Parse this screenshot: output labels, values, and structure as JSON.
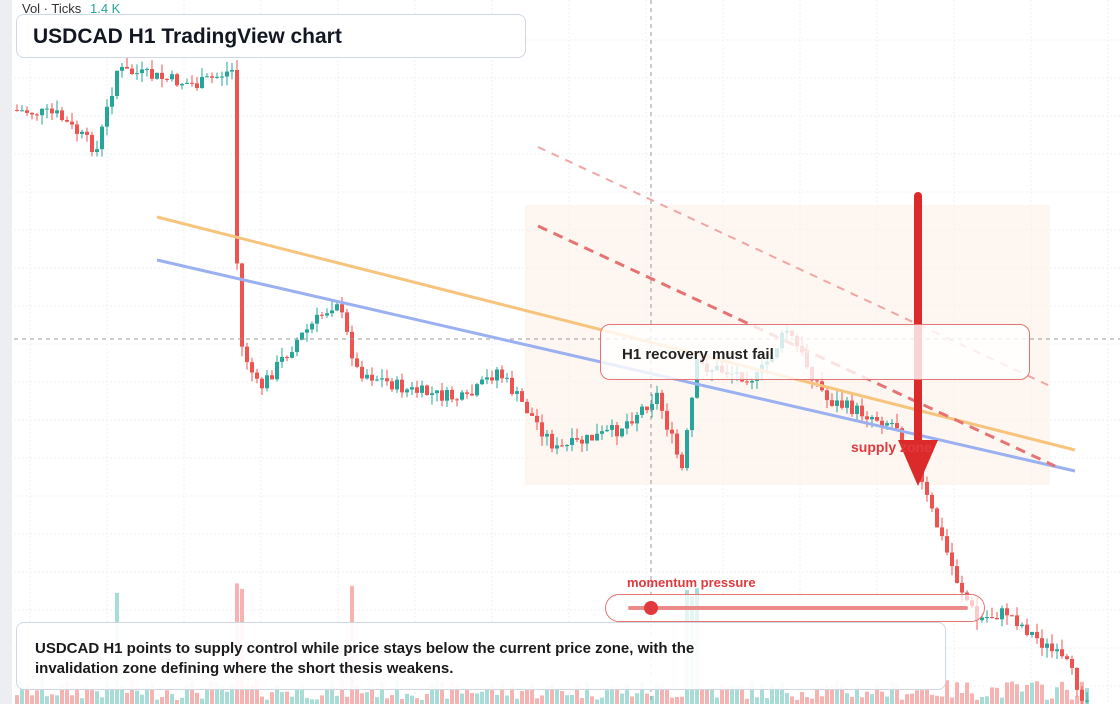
{
  "toolbar": {
    "label": "Vol · Ticks",
    "value": "1.4 K"
  },
  "header": {
    "title": "USDCAD H1 TradingView chart"
  },
  "annotations": {
    "callout": "H1 recovery must fail",
    "zone": "supply zone",
    "slider": "momentum pressure"
  },
  "footer": {
    "text": "USDCAD H1 points to supply control while price stays below the current price zone, with the invalidation zone defining where the short thesis weakens."
  }
}
